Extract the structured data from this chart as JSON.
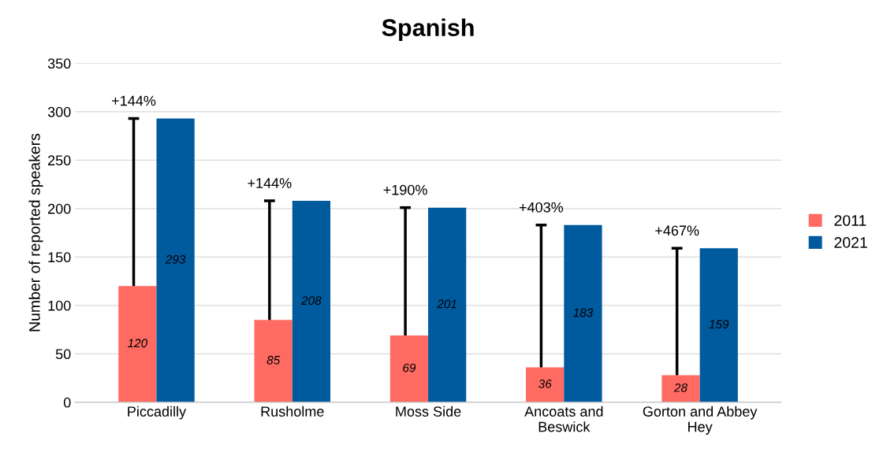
{
  "chart_data": {
    "type": "bar",
    "title": "Spanish",
    "ylabel": "Number of reported speakers",
    "categories": [
      "Piccadilly",
      "Rusholme",
      "Moss Side",
      "Ancoats and\nBeswick",
      "Gorton and Abbey\nHey"
    ],
    "series": [
      {
        "name": "2011",
        "color": "#ff6b63",
        "values": [
          120,
          85,
          69,
          36,
          28
        ],
        "errors": [
          [
            120,
            293
          ],
          [
            85,
            208
          ],
          [
            69,
            201
          ],
          [
            36,
            183
          ],
          [
            28,
            159
          ]
        ]
      },
      {
        "name": "2021",
        "color": "#005a9e",
        "values": [
          293,
          208,
          201,
          183,
          159
        ]
      }
    ],
    "ylim": [
      0,
      350
    ],
    "yticks": [
      0,
      50,
      100,
      150,
      200,
      250,
      300,
      350
    ],
    "grid": "y",
    "legend": "right",
    "data_labels": true,
    "annotations": [
      "+144%",
      "+144%",
      "+190%",
      "+403%",
      "+467%"
    ]
  }
}
